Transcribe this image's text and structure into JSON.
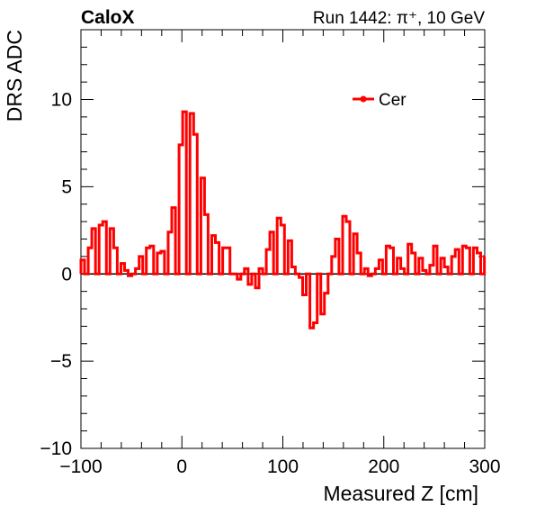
{
  "header": {
    "experiment": "CaloX",
    "run_info": "Run 1442:   π⁺, 10 GeV"
  },
  "chart_data": {
    "type": "line",
    "subtype": "step-histogram",
    "xlabel": "Measured Z [cm]",
    "ylabel": "DRS ADC",
    "xlim": [
      -100,
      300
    ],
    "ylim": [
      -10,
      14
    ],
    "xticks": [
      -100,
      0,
      100,
      200,
      300
    ],
    "xtick_labels": [
      "−100",
      "0",
      "100",
      "200",
      "300"
    ],
    "yticks": [
      -10,
      -5,
      0,
      5,
      10
    ],
    "ytick_labels": [
      "−10",
      "−5",
      "0",
      "5",
      "10"
    ],
    "grid": false,
    "zero_line": true,
    "legend": {
      "position": "top-right",
      "entries": [
        "Cer"
      ]
    },
    "series": [
      {
        "name": "Cer",
        "color": "#ff0000",
        "bin_width": 3.6,
        "x_start": -100,
        "values": [
          0.8,
          0.0,
          1.5,
          2.6,
          0.0,
          2.8,
          3.0,
          0.0,
          2.6,
          1.5,
          0.0,
          0.6,
          0.2,
          -0.1,
          0.0,
          0.3,
          1.0,
          0.0,
          1.5,
          1.6,
          0.0,
          1.2,
          1.3,
          0.0,
          2.4,
          3.8,
          0.0,
          7.4,
          9.3,
          0.0,
          9.2,
          8.0,
          0.0,
          5.5,
          3.4,
          0.0,
          2.2,
          1.8,
          0.0,
          1.5,
          1.5,
          0.0,
          0.0,
          -0.3,
          0.0,
          0.3,
          -0.6,
          0.0,
          -0.8,
          0.3,
          0.0,
          1.4,
          2.4,
          0.0,
          3.2,
          2.8,
          0.0,
          1.9,
          0.4,
          0.0,
          -0.2,
          -1.2,
          0.0,
          -3.1,
          -2.8,
          0.0,
          -2.3,
          -1.1,
          0.0,
          1.0,
          2.0,
          0.0,
          3.3,
          3.0,
          0.0,
          2.3,
          1.2,
          0.0,
          0.3,
          -0.1,
          0.0,
          0.3,
          0.8,
          0.0,
          1.6,
          1.5,
          0.0,
          0.9,
          0.3,
          0.0,
          1.7,
          1.2,
          0.0,
          0.9,
          0.2,
          0.0,
          0.5,
          1.6,
          0.0,
          0.9,
          0.4,
          0.0,
          1.0,
          1.4,
          0.0,
          1.6,
          1.5,
          0.0,
          1.5,
          1.2,
          0.0,
          1.0
        ]
      }
    ]
  }
}
